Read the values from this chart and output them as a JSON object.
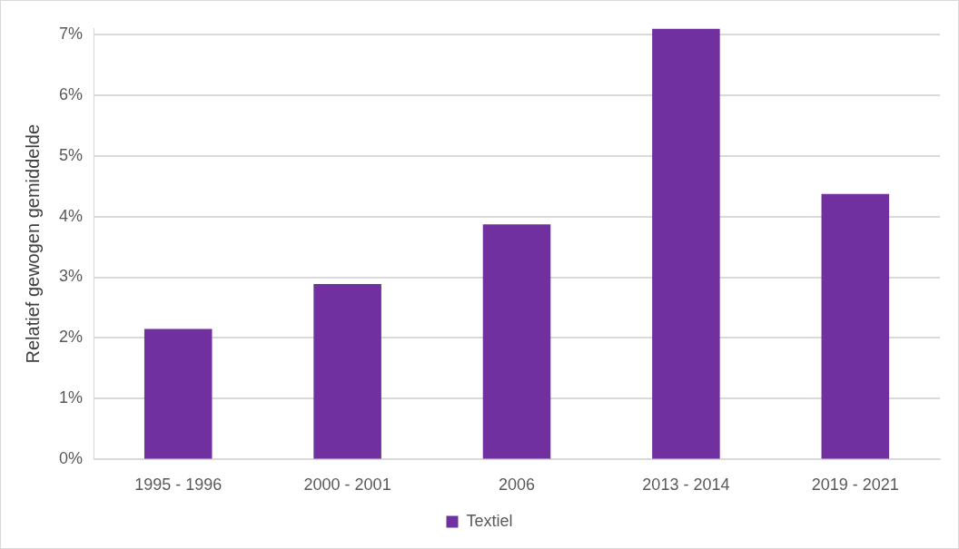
{
  "chart_data": {
    "type": "bar",
    "ylabel": "Relatief gewogen gemiddelde",
    "categories": [
      "1995 - 1996",
      "2000 - 2001",
      "2006",
      "2013 - 2014",
      "2019 - 2021"
    ],
    "series": [
      {
        "name": "Textiel",
        "color": "#7030a0",
        "values": [
          2.15,
          2.89,
          3.87,
          7.09,
          4.37
        ]
      }
    ],
    "ylim": [
      0,
      7.1
    ],
    "yticks": [
      {
        "value": 0,
        "label": "0%"
      },
      {
        "value": 1,
        "label": "1%"
      },
      {
        "value": 2,
        "label": "2%"
      },
      {
        "value": 3,
        "label": "3%"
      },
      {
        "value": 4,
        "label": "4%"
      },
      {
        "value": 5,
        "label": "5%"
      },
      {
        "value": 6,
        "label": "6%"
      },
      {
        "value": 7,
        "label": "7%"
      }
    ],
    "grid": "y",
    "legend": "bottom"
  }
}
